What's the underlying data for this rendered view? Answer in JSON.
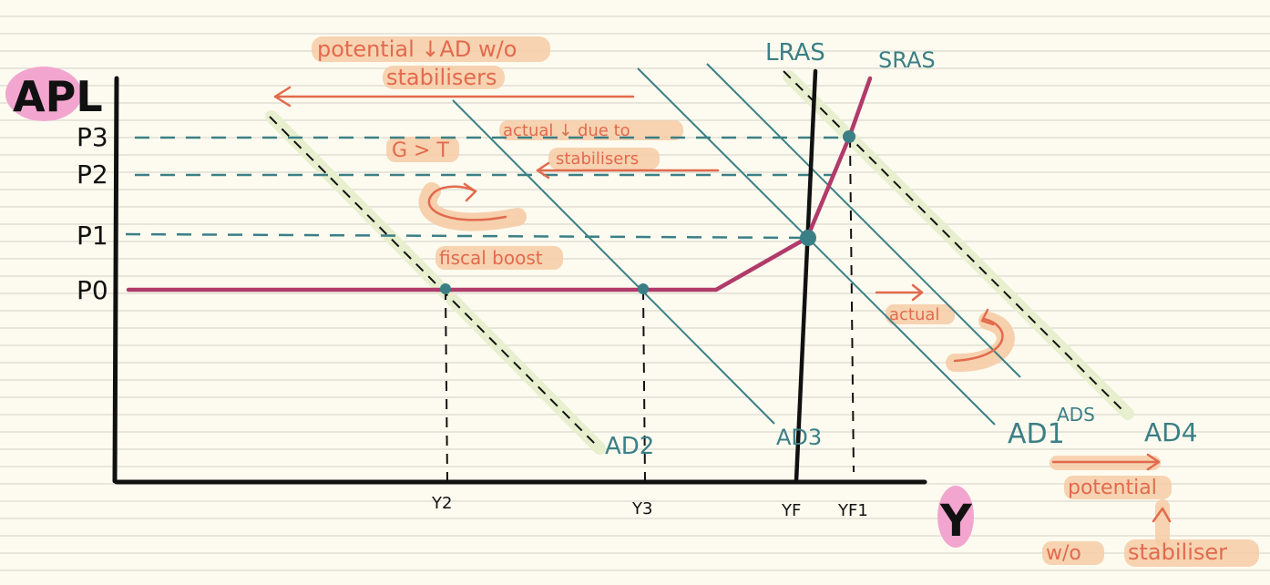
{
  "colors": {
    "paper": "#fdfbef",
    "rule_line": "#cfcfc4",
    "axis": "#111111",
    "teal": "#3b7f86",
    "magenta": "#b03b6a",
    "orange_text": "#e26a4d",
    "highlight_pink": "#f2a6cf",
    "highlight_peach": "#f6cba6",
    "highlight_lime": "#e7efcf"
  },
  "axes": {
    "y_label": "APL",
    "x_label": "Y"
  },
  "price_levels": [
    "P3",
    "P2",
    "P1",
    "P0"
  ],
  "output_levels": [
    "Y2",
    "Y3",
    "YF",
    "YF1"
  ],
  "curves": {
    "lras": "LRAS",
    "sras": "SRAS",
    "ad2": "AD2",
    "ad3": "AD3",
    "ad1": "AD1",
    "ads": "ADS",
    "ad4": "AD4"
  },
  "annotations": {
    "potential_line1": "potential ↓AD w/o",
    "potential_line2": "stabilisers",
    "actual_line1": "actual ↓ due to",
    "actual_line2": "stabilisers",
    "g_gt_t": "G > T",
    "fiscal_boost": "fiscal boost",
    "actual_right": "actual",
    "potential_bottom": "potential",
    "wo": "w/o",
    "stabiliser": "stabiliser"
  }
}
